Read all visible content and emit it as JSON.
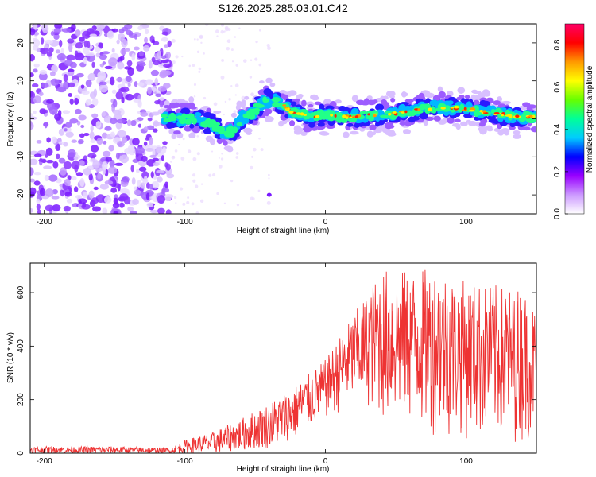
{
  "title": "S126.2025.285.03.01.C42",
  "chart_data": [
    {
      "type": "heatmap",
      "xlabel": "Height of straight line (km)",
      "ylabel": "Frequency (Hz)",
      "xlim": [
        -210,
        150
      ],
      "ylim": [
        -25,
        25
      ],
      "xticks": [
        -200,
        -100,
        0,
        100
      ],
      "yticks": [
        -20,
        -10,
        0,
        10,
        20
      ],
      "ridge": {
        "x": [
          -115,
          -100,
          -90,
          -80,
          -75,
          -70,
          -65,
          -60,
          -50,
          -45,
          -40,
          -35,
          -30,
          -25,
          -20,
          -10,
          0,
          10,
          20,
          30,
          40,
          50,
          60,
          70,
          80,
          90,
          100,
          110,
          120,
          130,
          140,
          150
        ],
        "y": [
          0,
          0,
          0,
          -1.5,
          -3,
          -4,
          -3,
          0,
          2,
          4.5,
          5,
          4.5,
          3.5,
          2,
          1.5,
          0.5,
          1,
          0.5,
          0.5,
          1,
          1,
          1.5,
          2,
          2.5,
          3,
          3,
          2.5,
          2,
          1.5,
          1,
          0.5,
          0.5
        ]
      },
      "noise_region_x": [
        -210,
        -110
      ],
      "isolated_blob": {
        "x": -40,
        "y": -20
      },
      "colorbar": {
        "label": "Normalized spectral amplitude",
        "range": [
          0.0,
          0.9
        ],
        "ticks": [
          0.0,
          0.2,
          0.4,
          0.6,
          0.8
        ],
        "colors": [
          "#ffffff",
          "#cc99ff",
          "#9900ff",
          "#0000ff",
          "#00ccff",
          "#00ff99",
          "#66ff00",
          "#ffff00",
          "#ff9900",
          "#ff0000",
          "#ff0066"
        ]
      }
    },
    {
      "type": "line",
      "xlabel": "Height of straight line (km)",
      "ylabel": "SNR (10 * v/v)",
      "xlim": [
        -210,
        150
      ],
      "ylim": [
        0,
        710
      ],
      "xticks": [
        -200,
        -100,
        0,
        100
      ],
      "yticks": [
        0,
        200,
        400,
        600
      ],
      "color": "#ee3333",
      "envelope": {
        "x": [
          -210,
          -150,
          -110,
          -100,
          -80,
          -60,
          -40,
          -20,
          0,
          20,
          30,
          40,
          60,
          80,
          100,
          120,
          140,
          150
        ],
        "low": [
          0,
          0,
          0,
          0,
          0,
          10,
          20,
          60,
          120,
          180,
          170,
          120,
          100,
          60,
          50,
          40,
          40,
          60
        ],
        "high": [
          25,
          25,
          20,
          50,
          80,
          130,
          190,
          260,
          350,
          520,
          600,
          690,
          680,
          700,
          640,
          630,
          620,
          540
        ]
      }
    }
  ]
}
